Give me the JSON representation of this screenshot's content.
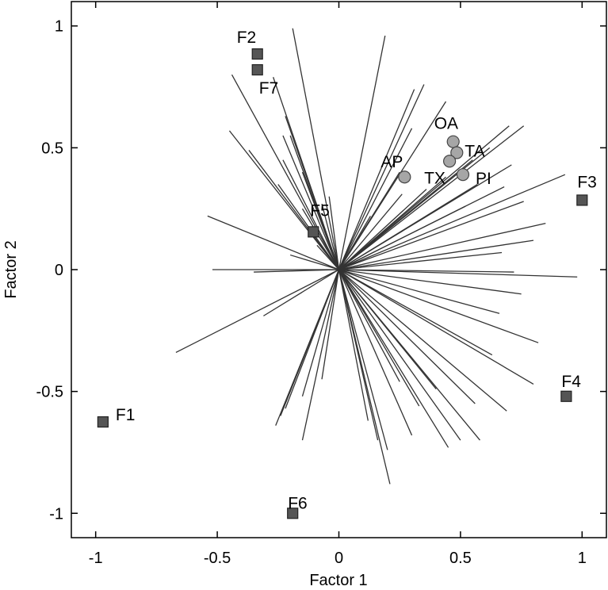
{
  "chart_data": {
    "type": "scatter",
    "xlabel": "Factor 1",
    "ylabel": "Factor 2",
    "xlim": [
      -1.1,
      1.1
    ],
    "ylim": [
      -1.1,
      1.1
    ],
    "x_ticks": [
      -1,
      -0.5,
      0,
      0.5,
      1
    ],
    "y_ticks": [
      1,
      0.5,
      0,
      -0.5,
      -1
    ],
    "x_tick_labels": [
      "-1",
      "-0.5",
      "0",
      "0.5",
      "1"
    ],
    "y_tick_labels": [
      "1",
      "0.5",
      "0",
      "-0.5",
      "-1"
    ],
    "grid": false,
    "colors": {
      "square": "#555555",
      "circle": "#a6a6a6",
      "vector": "#333333"
    },
    "series": [
      {
        "marker": "square",
        "points": [
          {
            "label": "F1",
            "x": -0.97,
            "y": -0.625
          },
          {
            "label": "F2",
            "x": -0.335,
            "y": 0.885
          },
          {
            "label": "F3",
            "x": 1.0,
            "y": 0.285
          },
          {
            "label": "F4",
            "x": 0.935,
            "y": -0.52
          },
          {
            "label": "F5",
            "x": -0.105,
            "y": 0.155
          },
          {
            "label": "F6",
            "x": -0.19,
            "y": -1.0
          },
          {
            "label": "F7",
            "x": -0.335,
            "y": 0.82
          }
        ]
      },
      {
        "marker": "circle",
        "points": [
          {
            "label": "OA",
            "x": 0.47,
            "y": 0.525
          },
          {
            "label": "TA",
            "x": 0.485,
            "y": 0.48
          },
          {
            "label": "AP",
            "x": 0.27,
            "y": 0.38
          },
          {
            "label": "TX",
            "x": 0.455,
            "y": 0.445
          },
          {
            "label": "PI",
            "x": 0.51,
            "y": 0.39
          }
        ]
      }
    ],
    "vectors": [
      [
        -0.19,
        0.99
      ],
      [
        -0.44,
        0.8
      ],
      [
        -0.27,
        0.79
      ],
      [
        -0.22,
        0.63
      ],
      [
        -0.2,
        0.55
      ],
      [
        -0.23,
        0.45
      ],
      [
        -0.15,
        0.4
      ],
      [
        -0.45,
        0.57
      ],
      [
        -0.37,
        0.49
      ],
      [
        -0.23,
        0.55
      ],
      [
        -0.25,
        0.35
      ],
      [
        -0.15,
        0.25
      ],
      [
        -0.07,
        0.27
      ],
      [
        -0.07,
        0.19
      ],
      [
        -0.04,
        0.3
      ],
      [
        -0.54,
        0.22
      ],
      [
        -0.2,
        0.06
      ],
      [
        -0.35,
        -0.01
      ],
      [
        -0.52,
        0.0
      ],
      [
        -0.67,
        -0.34
      ],
      [
        -0.31,
        -0.19
      ],
      [
        -0.26,
        -0.64
      ],
      [
        -0.24,
        -0.6
      ],
      [
        -0.15,
        -0.7
      ],
      [
        -0.22,
        -0.57
      ],
      [
        -0.15,
        -0.52
      ],
      [
        -0.07,
        -0.45
      ],
      [
        0.21,
        -0.88
      ],
      [
        0.16,
        -0.7
      ],
      [
        0.2,
        -0.74
      ],
      [
        0.12,
        -0.62
      ],
      [
        0.3,
        -0.68
      ],
      [
        0.25,
        -0.46
      ],
      [
        0.33,
        -0.56
      ],
      [
        0.45,
        -0.73
      ],
      [
        0.4,
        -0.49
      ],
      [
        0.5,
        -0.7
      ],
      [
        0.58,
        -0.7
      ],
      [
        0.56,
        -0.55
      ],
      [
        0.69,
        -0.58
      ],
      [
        0.63,
        -0.35
      ],
      [
        0.8,
        -0.47
      ],
      [
        0.66,
        -0.18
      ],
      [
        0.82,
        -0.3
      ],
      [
        0.75,
        -0.1
      ],
      [
        0.72,
        -0.01
      ],
      [
        0.98,
        -0.03
      ],
      [
        0.67,
        0.07
      ],
      [
        0.8,
        0.12
      ],
      [
        0.85,
        0.19
      ],
      [
        0.76,
        0.28
      ],
      [
        0.93,
        0.39
      ],
      [
        0.68,
        0.34
      ],
      [
        0.71,
        0.43
      ],
      [
        0.76,
        0.59
      ],
      [
        0.7,
        0.59
      ],
      [
        0.62,
        0.5
      ],
      [
        0.55,
        0.45
      ],
      [
        0.57,
        0.35
      ],
      [
        0.44,
        0.38
      ],
      [
        0.36,
        0.33
      ],
      [
        0.52,
        0.26
      ],
      [
        0.44,
        0.69
      ],
      [
        0.35,
        0.76
      ],
      [
        0.31,
        0.74
      ],
      [
        0.3,
        0.58
      ],
      [
        0.25,
        0.4
      ],
      [
        0.26,
        0.31
      ],
      [
        0.19,
        0.96
      ],
      [
        0.13,
        0.22
      ],
      [
        -0.09,
        0.1
      ]
    ]
  }
}
